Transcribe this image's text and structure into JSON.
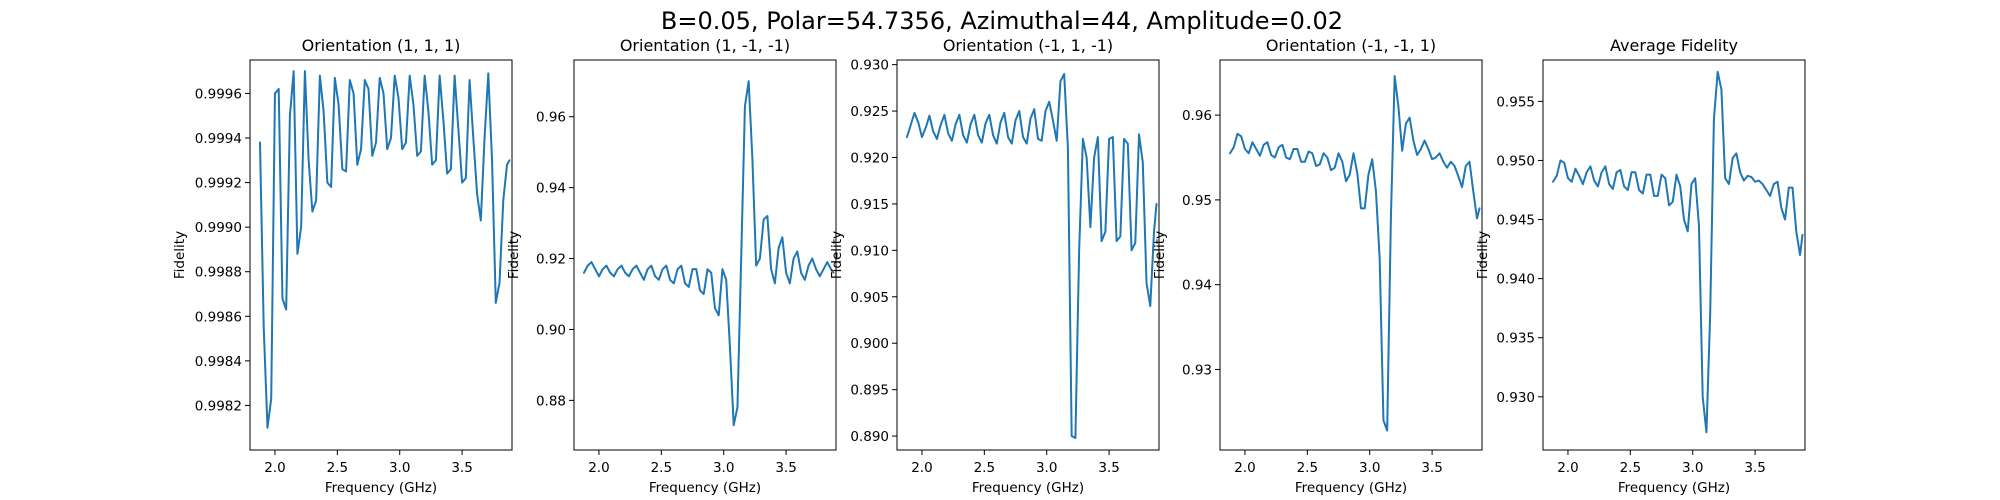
{
  "figure": {
    "suptitle": "B=0.05, Polar=54.7356, Azimuthal=44, Amplitude=0.02",
    "line_color": "#1f77b4"
  },
  "chart_data": [
    {
      "type": "line",
      "title": "Orientation (1, 1, 1)",
      "xlabel": "Frequency (GHz)",
      "ylabel": "Fidelity",
      "xlim": [
        1.8,
        3.9
      ],
      "ylim": [
        0.998,
        0.99975
      ],
      "xticks": [
        2.0,
        2.5,
        3.0,
        3.5
      ],
      "xtick_labels": [
        "2.0",
        "2.5",
        "3.0",
        "3.5"
      ],
      "yticks": [
        0.9982,
        0.9984,
        0.9986,
        0.9988,
        0.999,
        0.9992,
        0.9994,
        0.9996
      ],
      "ytick_labels": [
        "0.9982",
        "0.9984",
        "0.9986",
        "0.9988",
        "0.9990",
        "0.9992",
        "0.9994",
        "0.9996"
      ],
      "series": [
        {
          "x": [
            1.88,
            1.91,
            1.94,
            1.97,
            2.0,
            2.03,
            2.06,
            2.09,
            2.12,
            2.15,
            2.18,
            2.21,
            2.24,
            2.27,
            2.3,
            2.33,
            2.36,
            2.39,
            2.42,
            2.45,
            2.48,
            2.51,
            2.54,
            2.57,
            2.6,
            2.63,
            2.66,
            2.69,
            2.72,
            2.75,
            2.78,
            2.81,
            2.84,
            2.87,
            2.9,
            2.93,
            2.96,
            2.99,
            3.02,
            3.05,
            3.08,
            3.11,
            3.14,
            3.17,
            3.2,
            3.23,
            3.26,
            3.29,
            3.32,
            3.35,
            3.38,
            3.41,
            3.44,
            3.47,
            3.5,
            3.53,
            3.56,
            3.59,
            3.62,
            3.65,
            3.68,
            3.71,
            3.74,
            3.77,
            3.8,
            3.83,
            3.86,
            3.88
          ],
          "y": [
            0.99938,
            0.99855,
            0.9981,
            0.99823,
            0.9996,
            0.99962,
            0.99868,
            0.99863,
            0.9995,
            0.9997,
            0.99888,
            0.999,
            0.9997,
            0.9993,
            0.99907,
            0.99912,
            0.99968,
            0.99952,
            0.9992,
            0.99918,
            0.99967,
            0.99955,
            0.99926,
            0.99925,
            0.99966,
            0.9996,
            0.99928,
            0.99935,
            0.99966,
            0.99962,
            0.99932,
            0.99938,
            0.99967,
            0.9996,
            0.99935,
            0.9994,
            0.99968,
            0.99958,
            0.99935,
            0.99938,
            0.99968,
            0.99955,
            0.99932,
            0.99934,
            0.99968,
            0.99952,
            0.99928,
            0.9993,
            0.99968,
            0.99948,
            0.99924,
            0.99926,
            0.99968,
            0.99944,
            0.9992,
            0.99922,
            0.99966,
            0.9994,
            0.99915,
            0.99903,
            0.9994,
            0.99969,
            0.9993,
            0.99866,
            0.99875,
            0.99912,
            0.99928,
            0.9993
          ]
        }
      ]
    },
    {
      "type": "line",
      "title": "Orientation (1, -1, -1)",
      "xlabel": "Frequency (GHz)",
      "ylabel": "Fidelity",
      "xlim": [
        1.8,
        3.9
      ],
      "ylim": [
        0.866,
        0.976
      ],
      "xticks": [
        2.0,
        2.5,
        3.0,
        3.5
      ],
      "xtick_labels": [
        "2.0",
        "2.5",
        "3.0",
        "3.5"
      ],
      "yticks": [
        0.88,
        0.9,
        0.92,
        0.94,
        0.96
      ],
      "ytick_labels": [
        "0.88",
        "0.90",
        "0.92",
        "0.94",
        "0.96"
      ],
      "series": [
        {
          "x": [
            1.88,
            1.91,
            1.94,
            1.97,
            2.0,
            2.03,
            2.06,
            2.09,
            2.12,
            2.15,
            2.18,
            2.21,
            2.24,
            2.27,
            2.3,
            2.33,
            2.36,
            2.39,
            2.42,
            2.45,
            2.48,
            2.51,
            2.54,
            2.57,
            2.6,
            2.63,
            2.66,
            2.69,
            2.72,
            2.75,
            2.78,
            2.81,
            2.84,
            2.87,
            2.9,
            2.93,
            2.96,
            2.99,
            3.02,
            3.05,
            3.08,
            3.11,
            3.14,
            3.17,
            3.2,
            3.23,
            3.26,
            3.29,
            3.32,
            3.35,
            3.38,
            3.41,
            3.44,
            3.47,
            3.5,
            3.53,
            3.56,
            3.59,
            3.62,
            3.65,
            3.68,
            3.71,
            3.74,
            3.77,
            3.8,
            3.83,
            3.86,
            3.88
          ],
          "y": [
            0.916,
            0.918,
            0.919,
            0.917,
            0.915,
            0.917,
            0.918,
            0.916,
            0.915,
            0.917,
            0.918,
            0.916,
            0.915,
            0.917,
            0.918,
            0.916,
            0.914,
            0.917,
            0.918,
            0.915,
            0.914,
            0.917,
            0.918,
            0.914,
            0.913,
            0.917,
            0.918,
            0.913,
            0.912,
            0.917,
            0.917,
            0.911,
            0.91,
            0.917,
            0.916,
            0.906,
            0.904,
            0.917,
            0.914,
            0.895,
            0.873,
            0.878,
            0.92,
            0.963,
            0.97,
            0.948,
            0.918,
            0.92,
            0.931,
            0.932,
            0.917,
            0.913,
            0.923,
            0.926,
            0.916,
            0.913,
            0.92,
            0.922,
            0.916,
            0.914,
            0.918,
            0.92,
            0.917,
            0.915,
            0.917,
            0.919,
            0.917,
            0.916
          ]
        }
      ]
    },
    {
      "type": "line",
      "title": "Orientation (-1, 1, -1)",
      "xlabel": "Frequency (GHz)",
      "ylabel": "Fidelity",
      "xlim": [
        1.8,
        3.9
      ],
      "ylim": [
        0.8885,
        0.9305
      ],
      "xticks": [
        2.0,
        2.5,
        3.0,
        3.5
      ],
      "xtick_labels": [
        "2.0",
        "2.5",
        "3.0",
        "3.5"
      ],
      "yticks": [
        0.89,
        0.895,
        0.9,
        0.905,
        0.91,
        0.915,
        0.92,
        0.925,
        0.93
      ],
      "ytick_labels": [
        "0.890",
        "0.895",
        "0.900",
        "0.905",
        "0.910",
        "0.915",
        "0.920",
        "0.925",
        "0.930"
      ],
      "series": [
        {
          "x": [
            1.88,
            1.91,
            1.94,
            1.97,
            2.0,
            2.03,
            2.06,
            2.09,
            2.12,
            2.15,
            2.18,
            2.21,
            2.24,
            2.27,
            2.3,
            2.33,
            2.36,
            2.39,
            2.42,
            2.45,
            2.48,
            2.51,
            2.54,
            2.57,
            2.6,
            2.63,
            2.66,
            2.69,
            2.72,
            2.75,
            2.78,
            2.81,
            2.84,
            2.87,
            2.9,
            2.93,
            2.96,
            2.99,
            3.02,
            3.05,
            3.08,
            3.11,
            3.14,
            3.17,
            3.2,
            3.23,
            3.26,
            3.29,
            3.32,
            3.35,
            3.38,
            3.41,
            3.44,
            3.47,
            3.5,
            3.53,
            3.56,
            3.59,
            3.62,
            3.65,
            3.68,
            3.71,
            3.74,
            3.77,
            3.8,
            3.83,
            3.86,
            3.88
          ],
          "y": [
            0.9222,
            0.9235,
            0.9248,
            0.9238,
            0.9222,
            0.9232,
            0.9245,
            0.9228,
            0.922,
            0.9235,
            0.9246,
            0.9226,
            0.9218,
            0.9236,
            0.9246,
            0.9224,
            0.9216,
            0.9236,
            0.9246,
            0.9224,
            0.9216,
            0.9237,
            0.9246,
            0.9224,
            0.9215,
            0.9238,
            0.9248,
            0.9222,
            0.9215,
            0.924,
            0.925,
            0.9222,
            0.9215,
            0.9242,
            0.9252,
            0.922,
            0.9218,
            0.925,
            0.926,
            0.924,
            0.9218,
            0.9282,
            0.929,
            0.921,
            0.89,
            0.8898,
            0.91,
            0.922,
            0.92,
            0.9125,
            0.92,
            0.9222,
            0.911,
            0.912,
            0.922,
            0.9222,
            0.911,
            0.9115,
            0.922,
            0.9215,
            0.91,
            0.9108,
            0.9225,
            0.9195,
            0.9065,
            0.904,
            0.912,
            0.915
          ]
        }
      ]
    },
    {
      "type": "line",
      "title": "Orientation (-1, -1, 1)",
      "xlabel": "Frequency (GHz)",
      "ylabel": "Fidelity",
      "xlim": [
        1.8,
        3.9
      ],
      "ylim": [
        0.9205,
        0.9665
      ],
      "xticks": [
        2.0,
        2.5,
        3.0,
        3.5
      ],
      "xtick_labels": [
        "2.0",
        "2.5",
        "3.0",
        "3.5"
      ],
      "yticks": [
        0.93,
        0.94,
        0.95,
        0.96
      ],
      "ytick_labels": [
        "0.93",
        "0.94",
        "0.95",
        "0.96"
      ],
      "series": [
        {
          "x": [
            1.88,
            1.91,
            1.94,
            1.97,
            2.0,
            2.03,
            2.06,
            2.09,
            2.12,
            2.15,
            2.18,
            2.21,
            2.24,
            2.27,
            2.3,
            2.33,
            2.36,
            2.39,
            2.42,
            2.45,
            2.48,
            2.51,
            2.54,
            2.57,
            2.6,
            2.63,
            2.66,
            2.69,
            2.72,
            2.75,
            2.78,
            2.81,
            2.84,
            2.87,
            2.9,
            2.93,
            2.96,
            2.99,
            3.02,
            3.05,
            3.08,
            3.11,
            3.14,
            3.17,
            3.2,
            3.23,
            3.26,
            3.29,
            3.32,
            3.35,
            3.38,
            3.41,
            3.44,
            3.47,
            3.5,
            3.53,
            3.56,
            3.59,
            3.62,
            3.65,
            3.68,
            3.71,
            3.74,
            3.77,
            3.8,
            3.83,
            3.86,
            3.88
          ],
          "y": [
            0.9555,
            0.9562,
            0.9578,
            0.9575,
            0.956,
            0.9555,
            0.9568,
            0.956,
            0.9552,
            0.9565,
            0.9568,
            0.9553,
            0.955,
            0.9562,
            0.9565,
            0.955,
            0.9548,
            0.956,
            0.956,
            0.9545,
            0.9545,
            0.9557,
            0.9555,
            0.954,
            0.9542,
            0.9555,
            0.955,
            0.9535,
            0.9538,
            0.9555,
            0.9545,
            0.9522,
            0.953,
            0.9555,
            0.9532,
            0.949,
            0.949,
            0.953,
            0.9548,
            0.951,
            0.943,
            0.924,
            0.9228,
            0.948,
            0.9646,
            0.961,
            0.9558,
            0.959,
            0.9597,
            0.957,
            0.9553,
            0.956,
            0.957,
            0.956,
            0.9548,
            0.955,
            0.9555,
            0.9545,
            0.9538,
            0.9545,
            0.954,
            0.9528,
            0.9515,
            0.954,
            0.9545,
            0.951,
            0.9478,
            0.949
          ]
        }
      ]
    },
    {
      "type": "line",
      "title": "Average Fidelity",
      "xlabel": "Frequency (GHz)",
      "ylabel": "Fidelity",
      "xlim": [
        1.8,
        3.9
      ],
      "ylim": [
        0.9255,
        0.9585
      ],
      "xticks": [
        2.0,
        2.5,
        3.0,
        3.5
      ],
      "xtick_labels": [
        "2.0",
        "2.5",
        "3.0",
        "3.5"
      ],
      "yticks": [
        0.93,
        0.935,
        0.94,
        0.945,
        0.95,
        0.955
      ],
      "ytick_labels": [
        "0.930",
        "0.935",
        "0.940",
        "0.945",
        "0.950",
        "0.955"
      ],
      "series": [
        {
          "x": [
            1.88,
            1.91,
            1.94,
            1.97,
            2.0,
            2.03,
            2.06,
            2.09,
            2.12,
            2.15,
            2.18,
            2.21,
            2.24,
            2.27,
            2.3,
            2.33,
            2.36,
            2.39,
            2.42,
            2.45,
            2.48,
            2.51,
            2.54,
            2.57,
            2.6,
            2.63,
            2.66,
            2.69,
            2.72,
            2.75,
            2.78,
            2.81,
            2.84,
            2.87,
            2.9,
            2.93,
            2.96,
            2.99,
            3.02,
            3.05,
            3.08,
            3.11,
            3.14,
            3.17,
            3.2,
            3.23,
            3.26,
            3.29,
            3.32,
            3.35,
            3.38,
            3.41,
            3.44,
            3.47,
            3.5,
            3.53,
            3.56,
            3.59,
            3.62,
            3.65,
            3.68,
            3.71,
            3.74,
            3.77,
            3.8,
            3.83,
            3.86,
            3.88
          ],
          "y": [
            0.9482,
            0.9487,
            0.95,
            0.9498,
            0.9485,
            0.9482,
            0.9493,
            0.9487,
            0.948,
            0.949,
            0.9495,
            0.9483,
            0.9478,
            0.949,
            0.9495,
            0.948,
            0.9476,
            0.949,
            0.9492,
            0.9478,
            0.9475,
            0.949,
            0.949,
            0.9475,
            0.9472,
            0.9488,
            0.9488,
            0.947,
            0.947,
            0.9488,
            0.9485,
            0.9462,
            0.9465,
            0.9488,
            0.9478,
            0.945,
            0.944,
            0.948,
            0.9485,
            0.9445,
            0.93,
            0.927,
            0.937,
            0.9535,
            0.9575,
            0.956,
            0.9485,
            0.948,
            0.9502,
            0.9506,
            0.949,
            0.9483,
            0.9487,
            0.9486,
            0.9482,
            0.9483,
            0.948,
            0.9475,
            0.947,
            0.948,
            0.9482,
            0.946,
            0.945,
            0.9477,
            0.9477,
            0.944,
            0.942,
            0.9437
          ]
        }
      ]
    }
  ]
}
